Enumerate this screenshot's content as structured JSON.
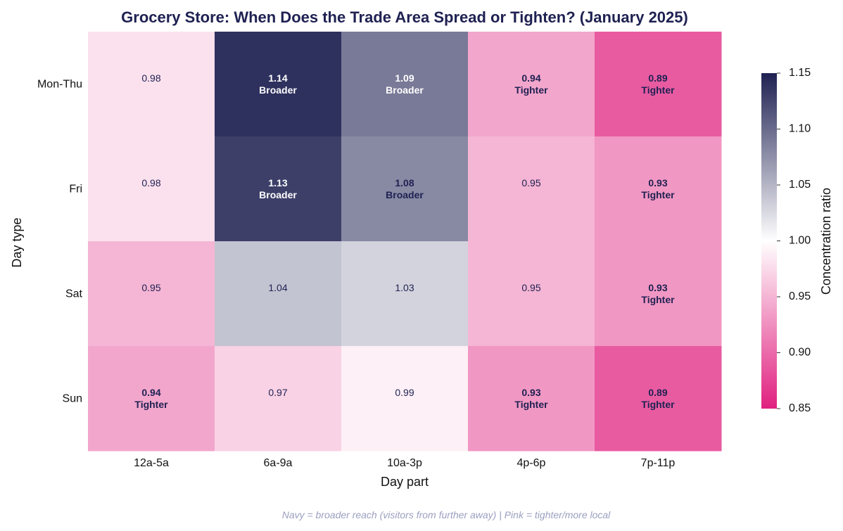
{
  "chart_data": {
    "type": "heatmap",
    "title": "Grocery Store: When Does the Trade Area Spread or Tighten? (January 2025)",
    "xlabel": "Day part",
    "ylabel": "Day type",
    "x_categories": [
      "12a-5a",
      "6a-9a",
      "10a-3p",
      "4p-6p",
      "7p-11p"
    ],
    "y_categories": [
      "Mon-Thu",
      "Fri",
      "Sat",
      "Sun"
    ],
    "values": [
      [
        0.98,
        1.14,
        1.09,
        0.94,
        0.89
      ],
      [
        0.98,
        1.13,
        1.08,
        0.95,
        0.93
      ],
      [
        0.95,
        1.04,
        1.03,
        0.95,
        0.93
      ],
      [
        0.94,
        0.97,
        0.99,
        0.93,
        0.89
      ]
    ],
    "value_labels": [
      [
        "0.98",
        "1.14",
        "1.09",
        "0.94",
        "0.89"
      ],
      [
        "0.98",
        "1.13",
        "1.08",
        "0.95",
        "0.93"
      ],
      [
        "0.95",
        "1.04",
        "1.03",
        "0.95",
        "0.93"
      ],
      [
        "0.94",
        "0.97",
        "0.99",
        "0.93",
        "0.89"
      ]
    ],
    "annotations": [
      [
        "",
        "Broader",
        "Broader",
        "Tighter",
        "Tighter"
      ],
      [
        "",
        "Broader",
        "Broader",
        "",
        "Tighter"
      ],
      [
        "",
        "",
        "",
        "",
        "Tighter"
      ],
      [
        "Tighter",
        "",
        "",
        "Tighter",
        "Tighter"
      ]
    ],
    "colorbar": {
      "label": "Concentration ratio",
      "range": [
        0.85,
        1.15
      ],
      "center": 1.0,
      "ticks": [
        "0.85",
        "0.90",
        "0.95",
        "1.00",
        "1.05",
        "1.10",
        "1.15"
      ]
    },
    "colors": {
      "low": "#e0207f",
      "mid": "#ffffff",
      "high": "#1f2152"
    },
    "grid": false,
    "legend": "colorbar-right"
  },
  "footnote": "Navy = broader reach (visitors from further away)  |  Pink = tighter/more local"
}
